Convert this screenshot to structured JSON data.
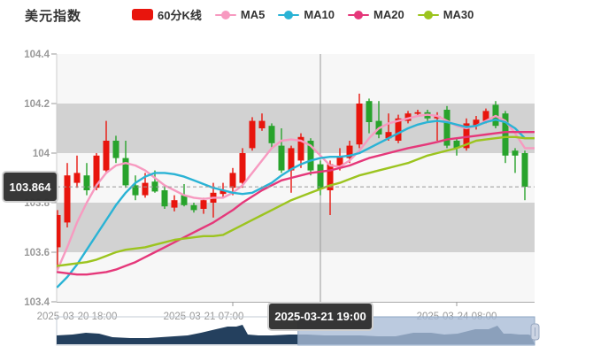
{
  "header": {
    "title": "美元指数",
    "legend": [
      {
        "label": "60分K线",
        "type": "kline",
        "color": "#e8150d"
      },
      {
        "label": "MA5",
        "type": "line",
        "color": "#f79ac0"
      },
      {
        "label": "MA10",
        "type": "line",
        "color": "#2ab3d5"
      },
      {
        "label": "MA20",
        "type": "line",
        "color": "#e5387a"
      },
      {
        "label": "MA30",
        "type": "line",
        "color": "#9cc41f"
      }
    ]
  },
  "y_axis": {
    "labels": [
      "104.4",
      "104.2",
      "104",
      "103.8",
      "103.6",
      "103.4"
    ],
    "values": [
      104.4,
      104.2,
      104.0,
      103.8,
      103.6,
      103.4
    ],
    "max": 104.4,
    "min": 103.4
  },
  "x_axis": {
    "labels": [
      {
        "text": "2025-03-20 18:00",
        "index": 2
      },
      {
        "text": "2025-03-21 07:00",
        "index": 15
      },
      {
        "text": "2025-03-24 08:00",
        "index": 41
      }
    ],
    "tick_indices": [
      18,
      41
    ]
  },
  "crosshair": {
    "index": 27,
    "price": 103.864,
    "price_label": "103.864",
    "time_label": "2025-03-21 19:00"
  },
  "chart_data": {
    "type": "candlestick",
    "title": "美元指数 60分K线",
    "ylim": [
      103.4,
      104.4
    ],
    "colors": {
      "up": "#e8150d",
      "down": "#28a32c"
    },
    "bands": {
      "light": "#f7f7f7",
      "gray": "#d2d2d2"
    },
    "candles": [
      [
        103.62,
        103.77,
        103.53,
        103.75
      ],
      [
        103.72,
        103.96,
        103.7,
        103.91
      ],
      [
        103.88,
        103.99,
        103.86,
        103.92
      ],
      [
        103.91,
        103.96,
        103.83,
        103.85
      ],
      [
        103.86,
        104.0,
        103.85,
        103.99
      ],
      [
        103.93,
        104.13,
        103.92,
        104.05
      ],
      [
        104.05,
        104.07,
        103.96,
        103.98
      ],
      [
        103.98,
        104.05,
        103.86,
        103.87
      ],
      [
        103.87,
        103.91,
        103.81,
        103.83
      ],
      [
        103.83,
        103.92,
        103.82,
        103.88
      ],
      [
        103.885,
        103.93,
        103.84,
        103.845
      ],
      [
        103.85,
        103.87,
        103.775,
        103.785
      ],
      [
        103.78,
        103.83,
        103.765,
        103.81
      ],
      [
        103.83,
        103.875,
        103.785,
        103.79
      ],
      [
        103.79,
        103.8,
        103.76,
        103.77
      ],
      [
        103.775,
        103.82,
        103.755,
        103.81
      ],
      [
        103.8,
        103.88,
        103.74,
        103.84
      ],
      [
        103.835,
        103.88,
        103.82,
        103.85
      ],
      [
        103.86,
        103.94,
        103.83,
        103.92
      ],
      [
        103.88,
        104.02,
        103.86,
        104.0
      ],
      [
        104.02,
        104.145,
        104.01,
        104.13
      ],
      [
        104.1,
        104.16,
        104.09,
        104.13
      ],
      [
        104.11,
        104.12,
        104.02,
        104.04
      ],
      [
        104.03,
        104.1,
        103.92,
        103.93
      ],
      [
        103.93,
        104.03,
        103.84,
        104.02
      ],
      [
        103.97,
        104.08,
        103.94,
        104.065
      ],
      [
        104.05,
        104.06,
        103.91,
        103.93
      ],
      [
        103.955,
        103.97,
        103.83,
        103.855
      ],
      [
        103.85,
        103.97,
        103.75,
        103.955
      ],
      [
        103.95,
        104.02,
        103.93,
        103.985
      ],
      [
        103.98,
        104.05,
        103.96,
        104.03
      ],
      [
        104.035,
        104.24,
        104.02,
        104.2
      ],
      [
        104.21,
        104.22,
        104.08,
        104.125
      ],
      [
        104.13,
        104.21,
        104.06,
        104.075
      ],
      [
        104.06,
        104.16,
        104.05,
        104.085
      ],
      [
        104.05,
        104.155,
        104.04,
        104.14
      ],
      [
        104.13,
        104.17,
        104.12,
        104.16
      ],
      [
        104.16,
        104.175,
        104.15,
        104.165
      ],
      [
        104.165,
        104.175,
        104.13,
        104.14
      ],
      [
        104.14,
        104.165,
        104.05,
        104.15
      ],
      [
        104.175,
        104.19,
        104.02,
        104.03
      ],
      [
        104.05,
        104.06,
        103.99,
        104.02
      ],
      [
        104.02,
        104.14,
        104.01,
        104.12
      ],
      [
        104.11,
        104.15,
        104.095,
        104.135
      ],
      [
        104.13,
        104.18,
        104.12,
        104.17
      ],
      [
        104.195,
        104.21,
        104.1,
        104.11
      ],
      [
        104.16,
        104.17,
        103.96,
        103.99
      ],
      [
        104.01,
        104.02,
        103.92,
        103.99
      ],
      [
        104.0,
        104.01,
        103.81,
        103.864
      ]
    ],
    "series": [
      {
        "name": "MA5",
        "color": "#f79ac0",
        "values": [
          103.53,
          103.62,
          103.72,
          103.8,
          103.87,
          103.92,
          103.95,
          103.96,
          103.95,
          103.93,
          103.9,
          103.87,
          103.85,
          103.83,
          103.82,
          103.815,
          103.82,
          103.82,
          103.84,
          103.87,
          103.92,
          103.97,
          104.02,
          104.05,
          104.055,
          104.05,
          104.03,
          103.99,
          103.95,
          103.945,
          103.97,
          104.01,
          104.06,
          104.1,
          104.12,
          104.13,
          104.14,
          104.15,
          104.155,
          104.15,
          104.13,
          104.11,
          104.1,
          104.11,
          104.13,
          104.15,
          104.13,
          104.08,
          104.02
        ]
      },
      {
        "name": "MA10",
        "color": "#2ab3d5",
        "values": [
          103.46,
          103.5,
          103.55,
          103.61,
          103.67,
          103.73,
          103.79,
          103.84,
          103.88,
          103.905,
          103.92,
          103.92,
          103.915,
          103.905,
          103.89,
          103.875,
          103.86,
          103.85,
          103.84,
          103.835,
          103.84,
          103.86,
          103.88,
          103.91,
          103.935,
          103.955,
          103.97,
          103.98,
          103.985,
          103.985,
          103.99,
          104.0,
          104.02,
          104.04,
          104.06,
          104.08,
          104.1,
          104.115,
          104.125,
          104.13,
          104.125,
          104.115,
          104.105,
          104.11,
          104.125,
          104.135,
          104.125,
          104.1,
          104.06
        ]
      },
      {
        "name": "MA20",
        "color": "#e5387a",
        "values": [
          103.52,
          103.515,
          103.51,
          103.51,
          103.515,
          103.52,
          103.53,
          103.545,
          103.56,
          103.58,
          103.6,
          103.62,
          103.64,
          103.66,
          103.68,
          103.7,
          103.72,
          103.745,
          103.77,
          103.8,
          103.825,
          103.85,
          103.87,
          103.89,
          103.9,
          103.91,
          103.92,
          103.925,
          103.93,
          103.94,
          103.95,
          103.965,
          103.98,
          103.99,
          104.0,
          104.01,
          104.02,
          104.028,
          104.036,
          104.045,
          104.055,
          104.06,
          104.065,
          104.07,
          104.075,
          104.08,
          104.085,
          104.085,
          104.085
        ]
      },
      {
        "name": "MA30",
        "color": "#9cc41f",
        "values": [
          103.545,
          103.55,
          103.555,
          103.56,
          103.57,
          103.585,
          103.6,
          103.61,
          103.615,
          103.62,
          103.63,
          103.64,
          103.65,
          103.655,
          103.66,
          103.665,
          103.665,
          103.67,
          103.69,
          103.71,
          103.73,
          103.75,
          103.77,
          103.79,
          103.81,
          103.825,
          103.84,
          103.855,
          103.87,
          103.88,
          103.895,
          103.91,
          103.92,
          103.93,
          103.94,
          103.95,
          103.96,
          103.975,
          103.99,
          104.0,
          104.01,
          104.02,
          104.035,
          104.05,
          104.055,
          104.06,
          104.065,
          104.065,
          104.06
        ]
      }
    ]
  },
  "navigator": {
    "area_color": "#24405e",
    "window_fill": "rgba(168,187,214,0.78)",
    "window_border": "#8ea6c3",
    "handle_fill": "#ccd4e3",
    "window": {
      "start": 0.505,
      "end": 1.0
    },
    "profile": [
      [
        0,
        10
      ],
      [
        18,
        11
      ],
      [
        33,
        13
      ],
      [
        48,
        12
      ],
      [
        63,
        8
      ],
      [
        83,
        7
      ],
      [
        103,
        7
      ],
      [
        118,
        8
      ],
      [
        133,
        9
      ],
      [
        148,
        10
      ],
      [
        163,
        13
      ],
      [
        180,
        17
      ],
      [
        193,
        20
      ],
      [
        203,
        20
      ],
      [
        210,
        22
      ],
      [
        216,
        11
      ],
      [
        228,
        10
      ],
      [
        243,
        10
      ],
      [
        263,
        11
      ],
      [
        283,
        11
      ],
      [
        303,
        10
      ],
      [
        323,
        10
      ],
      [
        343,
        10
      ],
      [
        363,
        9
      ],
      [
        383,
        9
      ],
      [
        403,
        13
      ],
      [
        423,
        13
      ],
      [
        438,
        11
      ],
      [
        453,
        12
      ],
      [
        473,
        17
      ],
      [
        488,
        17
      ],
      [
        498,
        21
      ],
      [
        505,
        12
      ],
      [
        513,
        12
      ],
      [
        523,
        11
      ],
      [
        533,
        11
      ],
      [
        536,
        10
      ]
    ]
  }
}
